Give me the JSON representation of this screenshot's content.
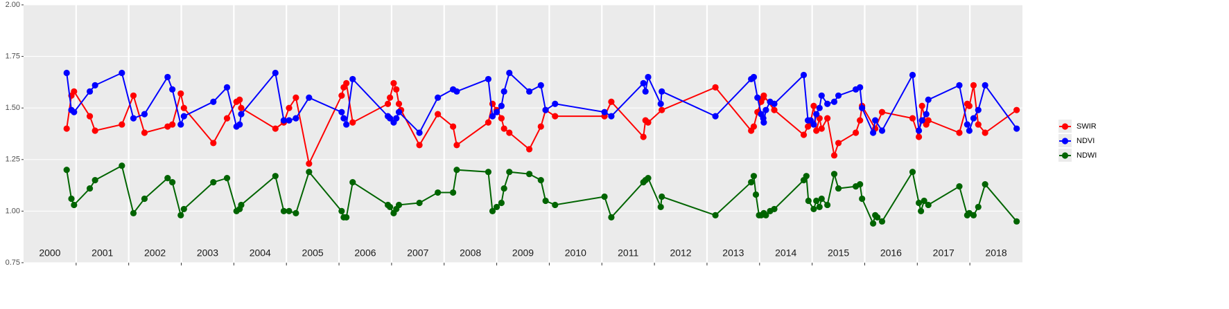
{
  "chart_data": {
    "type": "line",
    "year_labels": [
      "2000",
      "2001",
      "2002",
      "2003",
      "2004",
      "2005",
      "2006",
      "2007",
      "2008",
      "2009",
      "2010",
      "2011",
      "2012",
      "2013",
      "2014",
      "2015",
      "2016",
      "2017",
      "2018"
    ],
    "xlim": [
      2000,
      2019
    ],
    "xticks": [
      2001,
      2002,
      2003,
      2004,
      2005,
      2006,
      2007,
      2008,
      2009,
      2010,
      2011,
      2012,
      2013,
      2014,
      2015,
      2016,
      2017,
      2018
    ],
    "ylim": [
      0.75,
      2.0
    ],
    "yticks": [
      {
        "value": 0.75,
        "label": "0.75"
      },
      {
        "value": 1.0,
        "label": "1.00"
      },
      {
        "value": 1.25,
        "label": "1.25"
      },
      {
        "value": 1.5,
        "label": "1.50"
      },
      {
        "value": 1.75,
        "label": "1.75"
      },
      {
        "value": 2.0,
        "label": "2.00"
      }
    ],
    "grid": true,
    "legend": "right",
    "series": [
      {
        "name": "SWIR",
        "color": "#ff0000",
        "x": [
          2000.82,
          2000.91,
          2000.96,
          2001.26,
          2001.36,
          2001.87,
          2002.09,
          2002.3,
          2002.74,
          2002.83,
          2002.99,
          2003.05,
          2003.61,
          2003.87,
          2004.05,
          2004.11,
          2004.14,
          2004.79,
          2004.95,
          2005.05,
          2005.18,
          2005.43,
          2006.05,
          2006.09,
          2006.14,
          2006.26,
          2006.93,
          2006.97,
          2007.04,
          2007.09,
          2007.14,
          2007.18,
          2007.53,
          2007.88,
          2008.17,
          2008.24,
          2008.84,
          2008.92,
          2009.0,
          2009.09,
          2009.14,
          2009.24,
          2009.62,
          2009.84,
          2009.93,
          2010.11,
          2011.05,
          2011.18,
          2011.79,
          2011.83,
          2011.88,
          2012.14,
          2013.16,
          2013.84,
          2013.89,
          2013.96,
          2014.03,
          2014.07,
          2014.08,
          2014.28,
          2014.84,
          2014.92,
          2014.97,
          2015.03,
          2015.08,
          2015.14,
          2015.18,
          2015.29,
          2015.42,
          2015.5,
          2015.83,
          2015.91,
          2015.95,
          2016.2,
          2016.33,
          2016.91,
          2017.03,
          2017.09,
          2017.17,
          2017.21,
          2017.8,
          2017.95,
          2017.99,
          2018.07,
          2018.16,
          2018.29,
          2018.89
        ],
        "values": [
          1.4,
          1.56,
          1.58,
          1.46,
          1.39,
          1.42,
          1.56,
          1.38,
          1.41,
          1.42,
          1.57,
          1.5,
          1.33,
          1.45,
          1.53,
          1.54,
          1.5,
          1.4,
          1.43,
          1.5,
          1.55,
          1.23,
          1.56,
          1.6,
          1.62,
          1.43,
          1.52,
          1.55,
          1.62,
          1.59,
          1.52,
          1.49,
          1.32,
          1.47,
          1.41,
          1.32,
          1.43,
          1.52,
          1.49,
          1.45,
          1.4,
          1.38,
          1.3,
          1.41,
          1.49,
          1.46,
          1.46,
          1.53,
          1.36,
          1.44,
          1.43,
          1.49,
          1.6,
          1.39,
          1.41,
          1.48,
          1.53,
          1.55,
          1.56,
          1.49,
          1.37,
          1.41,
          1.43,
          1.51,
          1.39,
          1.45,
          1.4,
          1.45,
          1.27,
          1.33,
          1.38,
          1.44,
          1.51,
          1.4,
          1.48,
          1.45,
          1.36,
          1.51,
          1.42,
          1.44,
          1.38,
          1.52,
          1.51,
          1.61,
          1.42,
          1.38,
          1.49
        ]
      },
      {
        "name": "NDVI",
        "color": "#0000ff",
        "x": [
          2000.82,
          2000.91,
          2000.96,
          2001.26,
          2001.36,
          2001.87,
          2002.09,
          2002.3,
          2002.74,
          2002.83,
          2002.99,
          2003.05,
          2003.61,
          2003.87,
          2004.05,
          2004.11,
          2004.14,
          2004.79,
          2004.95,
          2005.05,
          2005.18,
          2005.43,
          2006.05,
          2006.09,
          2006.14,
          2006.26,
          2006.93,
          2006.97,
          2007.04,
          2007.09,
          2007.14,
          2007.53,
          2007.88,
          2008.17,
          2008.24,
          2008.84,
          2008.92,
          2009.0,
          2009.09,
          2009.14,
          2009.24,
          2009.62,
          2009.84,
          2009.93,
          2010.11,
          2011.05,
          2011.18,
          2011.79,
          2011.83,
          2011.88,
          2012.12,
          2012.14,
          2013.16,
          2013.84,
          2013.89,
          2013.96,
          2014.03,
          2014.07,
          2014.08,
          2014.12,
          2014.2,
          2014.28,
          2014.84,
          2014.92,
          2014.97,
          2015.03,
          2015.08,
          2015.14,
          2015.18,
          2015.29,
          2015.42,
          2015.5,
          2015.83,
          2015.91,
          2015.95,
          2016.16,
          2016.2,
          2016.33,
          2016.91,
          2017.03,
          2017.09,
          2017.17,
          2017.21,
          2017.8,
          2017.95,
          2017.99,
          2018.07,
          2018.16,
          2018.29,
          2018.89
        ],
        "values": [
          1.67,
          1.49,
          1.48,
          1.58,
          1.61,
          1.67,
          1.45,
          1.47,
          1.65,
          1.59,
          1.42,
          1.46,
          1.53,
          1.6,
          1.41,
          1.42,
          1.47,
          1.67,
          1.44,
          1.44,
          1.45,
          1.55,
          1.48,
          1.45,
          1.42,
          1.64,
          1.46,
          1.45,
          1.43,
          1.45,
          1.48,
          1.38,
          1.55,
          1.59,
          1.58,
          1.64,
          1.46,
          1.48,
          1.51,
          1.58,
          1.67,
          1.58,
          1.61,
          1.49,
          1.52,
          1.48,
          1.46,
          1.62,
          1.58,
          1.65,
          1.52,
          1.58,
          1.46,
          1.64,
          1.65,
          1.55,
          1.47,
          1.45,
          1.43,
          1.49,
          1.53,
          1.52,
          1.66,
          1.44,
          1.44,
          1.42,
          1.47,
          1.5,
          1.56,
          1.52,
          1.53,
          1.56,
          1.59,
          1.6,
          1.5,
          1.38,
          1.44,
          1.39,
          1.66,
          1.39,
          1.44,
          1.47,
          1.54,
          1.61,
          1.42,
          1.39,
          1.45,
          1.49,
          1.61,
          1.4
        ]
      },
      {
        "name": "NDWI",
        "color": "#006400",
        "x": [
          2000.82,
          2000.91,
          2000.96,
          2001.26,
          2001.36,
          2001.87,
          2002.09,
          2002.3,
          2002.74,
          2002.83,
          2002.99,
          2003.05,
          2003.61,
          2003.87,
          2004.05,
          2004.11,
          2004.14,
          2004.79,
          2004.95,
          2005.05,
          2005.18,
          2005.43,
          2006.05,
          2006.09,
          2006.14,
          2006.26,
          2006.93,
          2006.97,
          2007.04,
          2007.09,
          2007.14,
          2007.53,
          2007.88,
          2008.17,
          2008.24,
          2008.84,
          2008.92,
          2009.0,
          2009.09,
          2009.14,
          2009.24,
          2009.62,
          2009.84,
          2009.93,
          2010.11,
          2011.05,
          2011.18,
          2011.79,
          2011.83,
          2011.88,
          2012.12,
          2012.14,
          2013.16,
          2013.84,
          2013.89,
          2013.93,
          2013.99,
          2014.03,
          2014.08,
          2014.12,
          2014.2,
          2014.28,
          2014.84,
          2014.89,
          2014.93,
          2015.03,
          2015.08,
          2015.14,
          2015.18,
          2015.29,
          2015.42,
          2015.5,
          2015.83,
          2015.91,
          2015.95,
          2016.16,
          2016.2,
          2016.24,
          2016.33,
          2016.91,
          2017.03,
          2017.07,
          2017.13,
          2017.21,
          2017.8,
          2017.95,
          2017.99,
          2018.07,
          2018.16,
          2018.29,
          2018.89
        ],
        "values": [
          1.2,
          1.06,
          1.03,
          1.11,
          1.15,
          1.22,
          0.99,
          1.06,
          1.16,
          1.14,
          0.98,
          1.01,
          1.14,
          1.16,
          1.0,
          1.01,
          1.03,
          1.17,
          1.0,
          1.0,
          0.99,
          1.19,
          1.0,
          0.97,
          0.97,
          1.14,
          1.03,
          1.02,
          0.99,
          1.01,
          1.03,
          1.04,
          1.09,
          1.09,
          1.2,
          1.19,
          1.0,
          1.02,
          1.04,
          1.11,
          1.19,
          1.18,
          1.15,
          1.05,
          1.03,
          1.07,
          0.97,
          1.14,
          1.15,
          1.16,
          1.02,
          1.07,
          0.98,
          1.14,
          1.17,
          1.08,
          0.98,
          0.98,
          0.99,
          0.98,
          1.0,
          1.01,
          1.15,
          1.17,
          1.05,
          1.01,
          1.05,
          1.02,
          1.06,
          1.03,
          1.18,
          1.11,
          1.12,
          1.13,
          1.06,
          0.94,
          0.98,
          0.97,
          0.95,
          1.19,
          1.04,
          1.0,
          1.05,
          1.03,
          1.12,
          0.98,
          0.99,
          0.98,
          1.02,
          1.13,
          0.95
        ]
      }
    ]
  }
}
